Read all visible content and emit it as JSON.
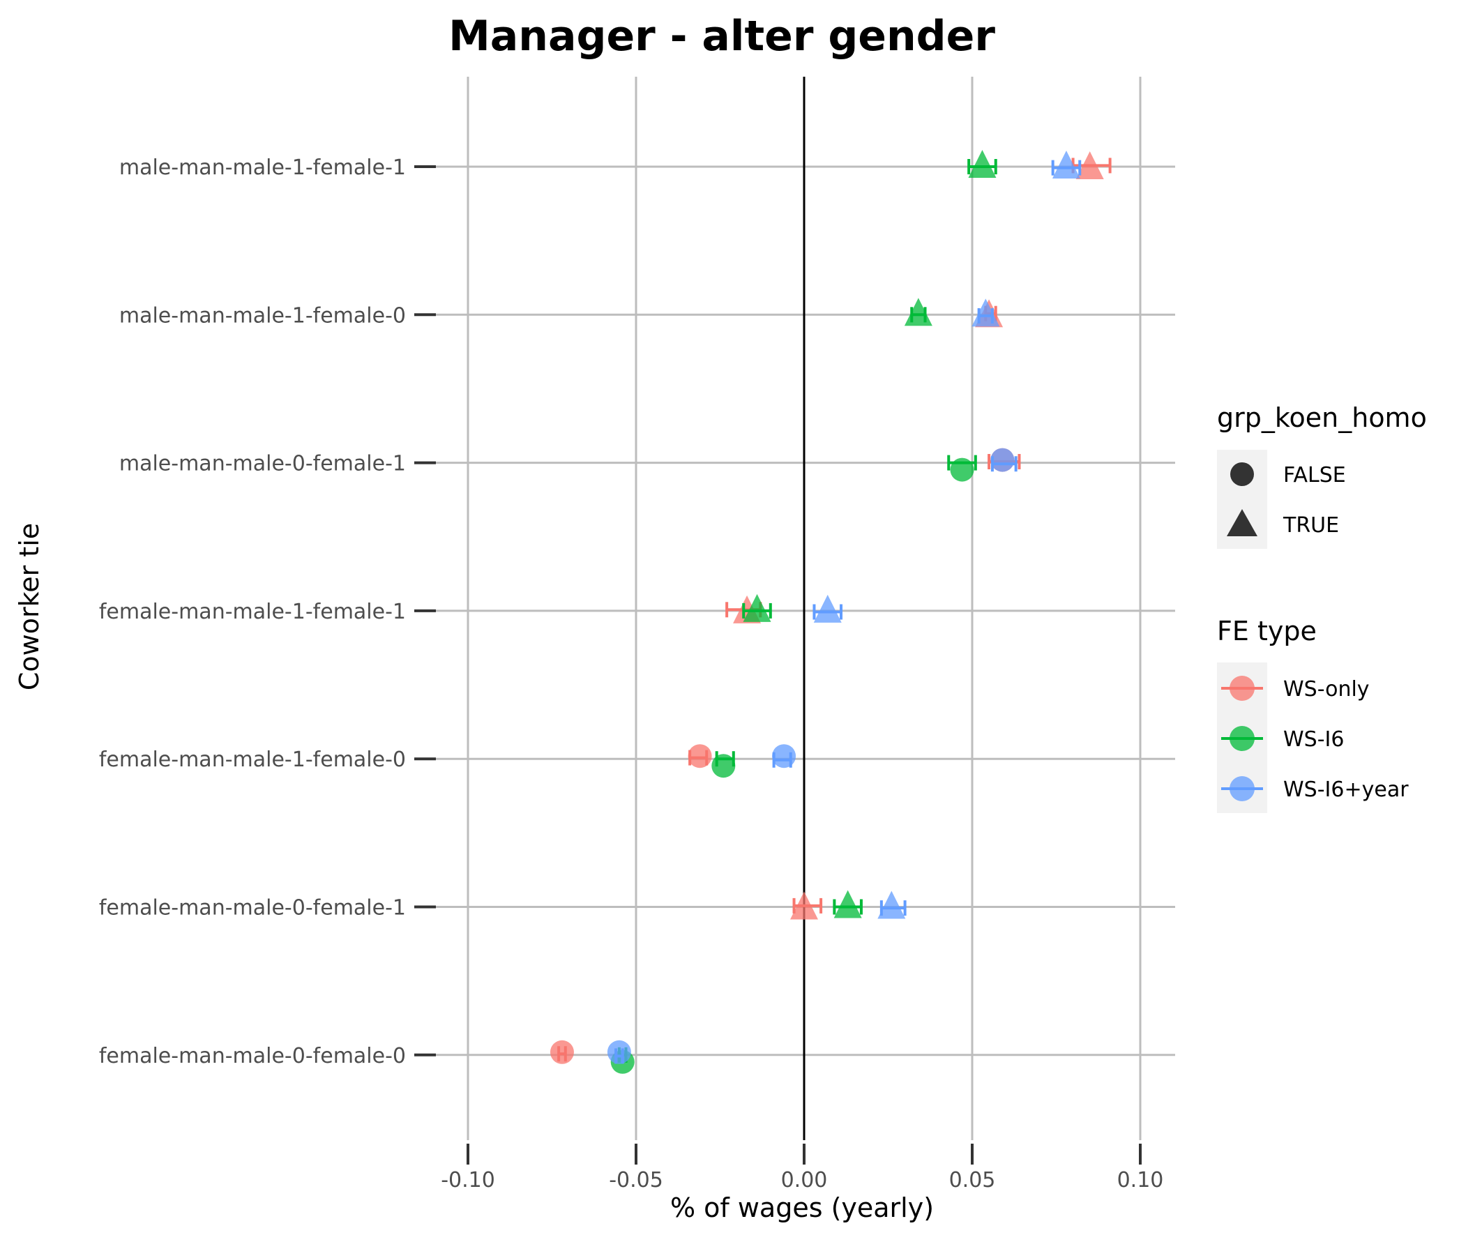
{
  "chart_data": {
    "type": "scatter",
    "title": "Manager - alter gender",
    "xlabel": "% of wages (yearly)",
    "ylabel": "Coworker tie",
    "xlim": [
      -0.12,
      0.11
    ],
    "x_ticks": [
      -0.1,
      -0.05,
      0.0,
      0.05,
      0.1
    ],
    "x_tick_labels": [
      "-0.10",
      "-0.05",
      "0.00",
      "0.05",
      "0.10"
    ],
    "reference_line_x": 0,
    "grid": true,
    "categories": [
      "male-man-male-1-female-1",
      "male-man-male-1-female-0",
      "male-man-male-0-female-1",
      "female-man-male-1-female-1",
      "female-man-male-1-female-0",
      "female-man-male-0-female-1",
      "female-man-male-0-female-0"
    ],
    "legend_shape": {
      "title": "grp_koen_homo",
      "items": [
        {
          "label": "FALSE",
          "shape": "circle"
        },
        {
          "label": "TRUE",
          "shape": "triangle"
        }
      ]
    },
    "legend_color": {
      "title": "FE type",
      "items": [
        {
          "label": "WS-only",
          "color": "#F8766D"
        },
        {
          "label": "WS-I6",
          "color": "#00BA38"
        },
        {
          "label": "WS-I6+year",
          "color": "#619CFF"
        }
      ]
    },
    "legend_position": "right",
    "series": [
      {
        "name": "WS-only",
        "color": "#F8766D",
        "points": [
          {
            "category": "male-man-male-1-female-1",
            "x": 0.085,
            "lo": 0.08,
            "hi": 0.091,
            "shape": "triangle"
          },
          {
            "category": "male-man-male-1-female-0",
            "x": 0.055,
            "lo": 0.054,
            "hi": 0.057,
            "shape": "triangle"
          },
          {
            "category": "male-man-male-0-female-1",
            "x": 0.059,
            "lo": 0.055,
            "hi": 0.064,
            "shape": "circle"
          },
          {
            "category": "female-man-male-1-female-1",
            "x": -0.017,
            "lo": -0.023,
            "hi": -0.013,
            "shape": "triangle"
          },
          {
            "category": "female-man-male-1-female-0",
            "x": -0.031,
            "lo": -0.034,
            "hi": -0.029,
            "shape": "circle"
          },
          {
            "category": "female-man-male-0-female-1",
            "x": 0.0,
            "lo": -0.003,
            "hi": 0.005,
            "shape": "triangle"
          },
          {
            "category": "female-man-male-0-female-0",
            "x": -0.072,
            "lo": -0.073,
            "hi": -0.071,
            "shape": "circle"
          }
        ]
      },
      {
        "name": "WS-I6",
        "color": "#00BA38",
        "points": [
          {
            "category": "male-man-male-1-female-1",
            "x": 0.053,
            "lo": 0.049,
            "hi": 0.057,
            "shape": "triangle"
          },
          {
            "category": "male-man-male-1-female-0",
            "x": 0.034,
            "lo": 0.032,
            "hi": 0.036,
            "shape": "triangle"
          },
          {
            "category": "male-man-male-0-female-1",
            "x": 0.047,
            "lo": 0.043,
            "hi": 0.051,
            "shape": "circle"
          },
          {
            "category": "female-man-male-1-female-1",
            "x": -0.014,
            "lo": -0.018,
            "hi": -0.01,
            "shape": "triangle"
          },
          {
            "category": "female-man-male-1-female-0",
            "x": -0.024,
            "lo": -0.026,
            "hi": -0.021,
            "shape": "circle"
          },
          {
            "category": "female-man-male-0-female-1",
            "x": 0.013,
            "lo": 0.009,
            "hi": 0.017,
            "shape": "triangle"
          },
          {
            "category": "female-man-male-0-female-0",
            "x": -0.054,
            "lo": -0.055,
            "hi": -0.053,
            "shape": "circle"
          }
        ]
      },
      {
        "name": "WS-I6+year",
        "color": "#619CFF",
        "points": [
          {
            "category": "male-man-male-1-female-1",
            "x": 0.078,
            "lo": 0.074,
            "hi": 0.082,
            "shape": "triangle"
          },
          {
            "category": "male-man-male-1-female-0",
            "x": 0.054,
            "lo": 0.052,
            "hi": 0.056,
            "shape": "triangle"
          },
          {
            "category": "male-man-male-0-female-1",
            "x": 0.059,
            "lo": 0.056,
            "hi": 0.063,
            "shape": "circle"
          },
          {
            "category": "female-man-male-1-female-1",
            "x": 0.007,
            "lo": 0.003,
            "hi": 0.011,
            "shape": "triangle"
          },
          {
            "category": "female-man-male-1-female-0",
            "x": -0.006,
            "lo": -0.009,
            "hi": -0.004,
            "shape": "circle"
          },
          {
            "category": "female-man-male-0-female-1",
            "x": 0.026,
            "lo": 0.023,
            "hi": 0.03,
            "shape": "triangle"
          },
          {
            "category": "female-man-male-0-female-0",
            "x": -0.055,
            "lo": -0.056,
            "hi": -0.054,
            "shape": "circle"
          }
        ]
      }
    ]
  }
}
